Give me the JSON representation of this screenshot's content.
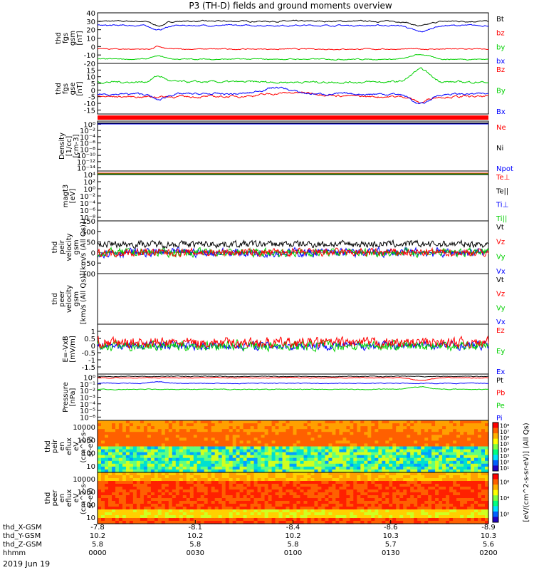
{
  "title": "P3 (TH-D) fields and ground moments overview",
  "date": "2019 Jun 19",
  "colors": {
    "black": "#000000",
    "red": "#ff0000",
    "green": "#00d000",
    "blue": "#0000ff"
  },
  "panels": [
    {
      "id": "fgs-gsm",
      "ylabel": [
        "thd",
        "fgs",
        "gsm",
        "[nT]"
      ],
      "ylim": [
        -20,
        40
      ],
      "yticks": [
        "40",
        "30",
        "20",
        "10",
        "0",
        "-10",
        "-20"
      ],
      "legend": [
        {
          "label": "Bt",
          "color": "#000000"
        },
        {
          "label": "bz",
          "color": "#ff0000"
        },
        {
          "label": "by",
          "color": "#00d000"
        },
        {
          "label": "bx",
          "color": "#0000ff"
        }
      ]
    },
    {
      "id": "fgs-gse",
      "ylabel": [
        "thd",
        "fgs",
        "gse",
        "[nT]"
      ],
      "ylim": [
        -18,
        20
      ],
      "yticks": [
        "15",
        "10",
        "5",
        "0",
        "-5",
        "-10",
        "-15"
      ],
      "legend": [
        {
          "label": "Bz",
          "color": "#ff0000"
        },
        {
          "label": "By",
          "color": "#00d000"
        },
        {
          "label": "Bx",
          "color": "#0000ff"
        }
      ]
    },
    {
      "id": "density",
      "ylabel": [
        "Density",
        "[1/cc]",
        "[cm-3]"
      ],
      "yticks": [
        "10⁰",
        "10⁻²",
        "10⁻⁴",
        "10⁻⁶",
        "10⁻⁸",
        "10⁻¹⁰",
        "10⁻¹²",
        "10⁻¹⁴"
      ],
      "legend": [
        {
          "label": "Ne",
          "color": "#ff0000"
        },
        {
          "label": "Ni",
          "color": "#000000"
        },
        {
          "label": "Npot",
          "color": "#0000ff"
        }
      ]
    },
    {
      "id": "temperature",
      "ylabel": [
        "magt3",
        "[eV]"
      ],
      "yticks": [
        "10⁴",
        "10²",
        "10⁰",
        "10⁻²",
        "10⁻⁴",
        "10⁻⁶",
        "10⁻⁸"
      ],
      "legend": [
        {
          "label": "Te⊥",
          "color": "#ff0000"
        },
        {
          "label": "Te||",
          "color": "#000000"
        },
        {
          "label": "Ti⊥",
          "color": "#0000ff"
        },
        {
          "label": "Ti||",
          "color": "#00d000"
        }
      ]
    },
    {
      "id": "peir-velocity",
      "ylabel": [
        "thd",
        "peir",
        "velocity",
        "gsm",
        "[km/s (All Qs)]"
      ],
      "ylim": [
        -100,
        150
      ],
      "yticks": [
        "150",
        "100",
        "50",
        "0",
        "-50",
        "-100"
      ],
      "legend": [
        {
          "label": "Vt",
          "color": "#000000"
        },
        {
          "label": "Vz",
          "color": "#ff0000"
        },
        {
          "label": "Vy",
          "color": "#00d000"
        },
        {
          "label": "Vx",
          "color": "#0000ff"
        }
      ]
    },
    {
      "id": "peer-velocity",
      "ylabel": [
        "thd",
        "peer",
        "velocity",
        "gsm",
        "[km/s (All Qs)]"
      ],
      "legend": [
        {
          "label": "Vt",
          "color": "#000000"
        },
        {
          "label": "Vz",
          "color": "#ff0000"
        },
        {
          "label": "Vy",
          "color": "#00d000"
        },
        {
          "label": "Vx",
          "color": "#0000ff"
        }
      ]
    },
    {
      "id": "efield",
      "ylabel": [
        "E=-VxB",
        "[mV/m]"
      ],
      "ylim": [
        -2,
        1.5
      ],
      "yticks": [
        "1",
        "0.5",
        "0",
        "-0.5",
        "-1",
        "-1.5"
      ],
      "legend": [
        {
          "label": "Ez",
          "color": "#ff0000"
        },
        {
          "label": "Ey",
          "color": "#00d000"
        },
        {
          "label": "Ex",
          "color": "#0000ff"
        }
      ]
    },
    {
      "id": "pressure",
      "ylabel": [
        "Pressure",
        "[nPa]"
      ],
      "yticks": [
        "10⁰",
        "10⁻¹",
        "10⁻²",
        "10⁻³",
        "10⁻⁴",
        "10⁻⁵",
        "10⁻⁶"
      ],
      "legend": [
        {
          "label": "Pt",
          "color": "#000000"
        },
        {
          "label": "Pb",
          "color": "#ff0000"
        },
        {
          "label": "Pe",
          "color": "#00d000"
        },
        {
          "label": "Pi",
          "color": "#0000ff"
        }
      ]
    },
    {
      "id": "peir-eflux",
      "ylabel": [
        "thd",
        "peir",
        "en",
        "eflux",
        "eV",
        "(cm^2-s-",
        "sr-eV)"
      ],
      "yticks": [
        "10000",
        "1000",
        "100",
        "10"
      ]
    },
    {
      "id": "peer-eflux",
      "ylabel": [
        "thd",
        "peer",
        "en",
        "eflux",
        "eV",
        "(cm^2-s-",
        "sr-eV)"
      ],
      "yticks": [
        "10000",
        "1000",
        "100",
        "10"
      ]
    }
  ],
  "colorbar": {
    "label": "[eV/(cm^2-s-sr-eV)] (All Qs)",
    "ticks_top": [
      "10⁸",
      "10⁷",
      "10⁶",
      "10⁵",
      "10⁴",
      "10³",
      "10²",
      "10¹"
    ],
    "ticks_bottom": [
      "10⁶",
      "10⁴",
      "10²"
    ]
  },
  "xaxis": {
    "row_labels": [
      "thd_X-GSM",
      "thd_Y-GSM",
      "thd_Z-GSM",
      "hhmm"
    ],
    "ticks": [
      {
        "x": "-7.8",
        "y": "10.2",
        "z": "5.8",
        "hhmm": "0000"
      },
      {
        "x": "-8.1",
        "y": "10.2",
        "z": "5.8",
        "hhmm": "0030"
      },
      {
        "x": "-8.4",
        "y": "10.2",
        "z": "5.8",
        "hhmm": "0100"
      },
      {
        "x": "-8.6",
        "y": "10.3",
        "z": "5.7",
        "hhmm": "0130"
      },
      {
        "x": "-8.9",
        "y": "10.3",
        "z": "5.6",
        "hhmm": "0200"
      }
    ]
  }
}
